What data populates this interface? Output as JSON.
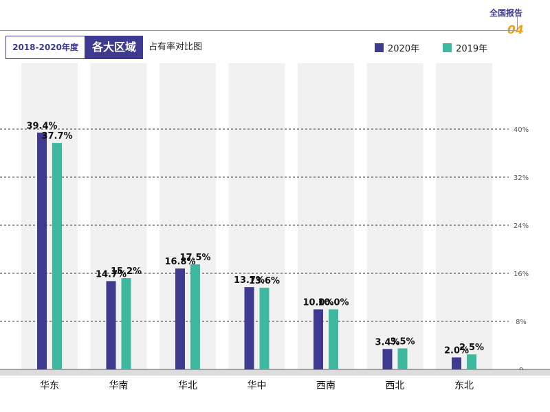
{
  "header": {
    "report_label": "全国报告",
    "report_number": "04",
    "years_range": "2018-2020年度",
    "region_label": "各大区域",
    "chart_title": "占有率对比图"
  },
  "colors": {
    "series_2020": "#3d3a8f",
    "series_2019": "#3fb8a0",
    "accent_orange": "#f0a21b"
  },
  "chart_data": {
    "type": "bar",
    "categories": [
      "华东",
      "华南",
      "华北",
      "华中",
      "西南",
      "西北",
      "东北"
    ],
    "series": [
      {
        "name": "2020年",
        "values": [
          39.4,
          14.7,
          16.8,
          13.7,
          10.0,
          3.4,
          2.0
        ]
      },
      {
        "name": "2019年",
        "values": [
          37.7,
          15.2,
          17.5,
          13.6,
          10.0,
          3.5,
          2.5
        ]
      }
    ],
    "value_unit": "%",
    "ylim": [
      0,
      48
    ],
    "y_ticks": [
      0,
      8,
      16,
      24,
      32,
      40
    ],
    "y_tick_labels": [
      "0",
      "8%",
      "16%",
      "24%",
      "32%",
      "40%"
    ],
    "grid": true,
    "legend_position": "top-right"
  }
}
